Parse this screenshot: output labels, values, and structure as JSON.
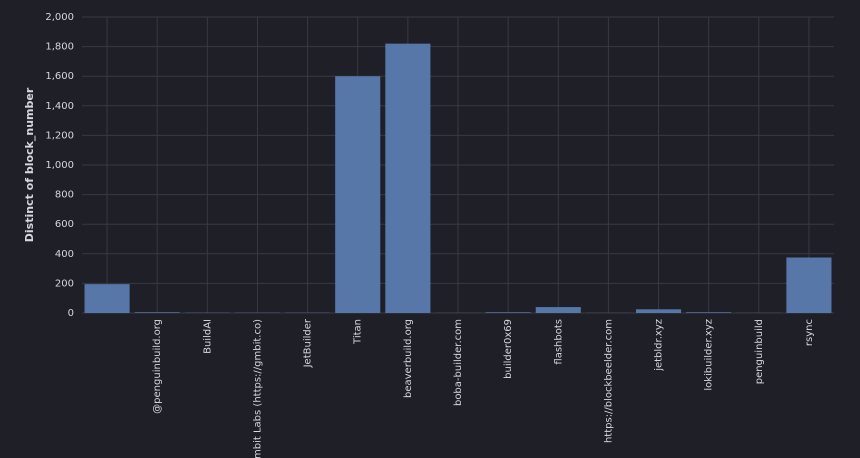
{
  "chart_data": {
    "type": "bar",
    "y_label": "Distinct of block_number",
    "categories": [
      null,
      "@penguinbuild.org",
      "BuildAI",
      "Gambit Labs (https://gmbit.co)",
      "JetBuilder",
      "Titan",
      "beaverbuild.org",
      "boba-builder.com",
      "builder0x69",
      "flashbots",
      "https://blockbeelder.com",
      "jetbldr.xyz",
      "lokibuilder.xyz",
      "penguinbuild",
      "rsync"
    ],
    "values": [
      195,
      5,
      2,
      2,
      2,
      1600,
      1820,
      1,
      5,
      40,
      1,
      25,
      5,
      1,
      375
    ],
    "color": "#5677a8",
    "ylim": [
      0,
      2000
    ],
    "yticks": [
      0,
      200,
      400,
      600,
      800,
      {
        "value": 1000,
        "label": "1,000"
      },
      {
        "value": 1200,
        "label": "1,200"
      },
      {
        "value": 1400,
        "label": "1,400"
      },
      {
        "value": 1600,
        "label": "1,600"
      },
      {
        "value": 1800,
        "label": "1,800"
      },
      {
        "value": 2000,
        "label": "2,000"
      }
    ],
    "grid": true
  }
}
